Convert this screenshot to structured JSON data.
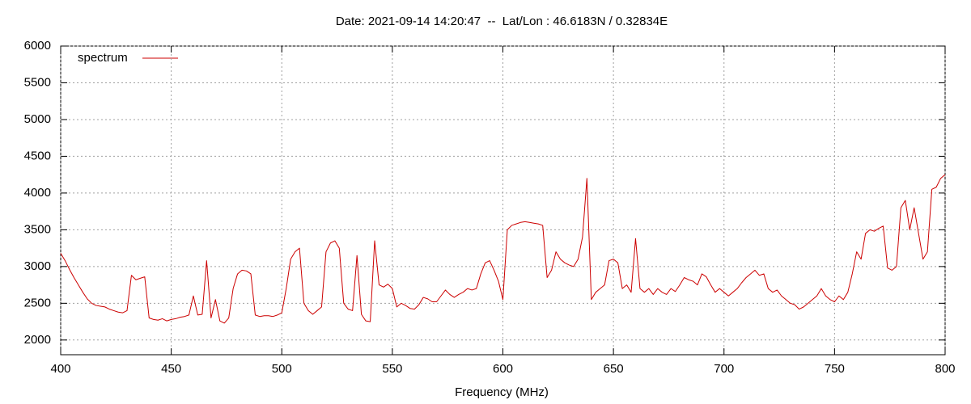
{
  "chart_data": {
    "type": "line",
    "title": "Date: 2021-09-14 14:20:47  --  Lat/Lon : 46.6183N / 0.32834E",
    "xlabel": "Frequency (MHz)",
    "xlim": [
      400,
      800
    ],
    "ylim": [
      1800,
      6000
    ],
    "xticks": [
      400,
      450,
      500,
      550,
      600,
      650,
      700,
      750,
      800
    ],
    "yticks": [
      2000,
      2500,
      3000,
      3500,
      4000,
      4500,
      5000,
      5500,
      6000
    ],
    "grid": true,
    "legend": "upper left",
    "x": [
      400,
      402,
      404,
      406,
      408,
      410,
      412,
      414,
      416,
      418,
      420,
      422,
      424,
      426,
      428,
      430,
      432,
      434,
      436,
      438,
      440,
      442,
      444,
      446,
      448,
      450,
      452,
      454,
      456,
      458,
      460,
      462,
      464,
      466,
      468,
      470,
      472,
      474,
      476,
      478,
      480,
      482,
      484,
      486,
      488,
      490,
      492,
      494,
      496,
      498,
      500,
      502,
      504,
      506,
      508,
      510,
      512,
      514,
      516,
      518,
      520,
      522,
      524,
      526,
      528,
      530,
      532,
      534,
      536,
      538,
      540,
      542,
      544,
      546,
      548,
      550,
      552,
      554,
      556,
      558,
      560,
      562,
      564,
      566,
      568,
      570,
      572,
      574,
      576,
      578,
      580,
      582,
      584,
      586,
      588,
      590,
      592,
      594,
      596,
      598,
      600,
      602,
      604,
      606,
      608,
      610,
      612,
      614,
      616,
      618,
      620,
      622,
      624,
      626,
      628,
      630,
      632,
      634,
      636,
      638,
      640,
      642,
      644,
      646,
      648,
      650,
      652,
      654,
      656,
      658,
      660,
      662,
      664,
      666,
      668,
      670,
      672,
      674,
      676,
      678,
      680,
      682,
      684,
      686,
      688,
      690,
      692,
      694,
      696,
      698,
      700,
      702,
      704,
      706,
      708,
      710,
      712,
      714,
      716,
      718,
      720,
      722,
      724,
      726,
      728,
      730,
      732,
      734,
      736,
      738,
      740,
      742,
      744,
      746,
      748,
      750,
      752,
      754,
      756,
      758,
      760,
      762,
      764,
      766,
      768,
      770,
      772,
      774,
      776,
      778,
      780,
      782,
      784,
      786,
      788,
      790,
      792,
      794,
      796,
      798,
      800
    ],
    "series": [
      {
        "name": "spectrum",
        "color": "#cc0000",
        "values": [
          3180,
          3080,
          2960,
          2850,
          2750,
          2650,
          2560,
          2500,
          2470,
          2460,
          2450,
          2420,
          2400,
          2380,
          2370,
          2400,
          2880,
          2820,
          2840,
          2860,
          2300,
          2280,
          2270,
          2290,
          2260,
          2280,
          2290,
          2310,
          2320,
          2340,
          2600,
          2340,
          2350,
          3080,
          2300,
          2550,
          2260,
          2230,
          2300,
          2700,
          2900,
          2950,
          2940,
          2900,
          2340,
          2320,
          2330,
          2330,
          2320,
          2340,
          2370,
          2700,
          3100,
          3200,
          3250,
          2500,
          2400,
          2350,
          2400,
          2450,
          3200,
          3320,
          3350,
          3250,
          2500,
          2420,
          2400,
          3150,
          2350,
          2260,
          2250,
          3350,
          2750,
          2720,
          2760,
          2700,
          2450,
          2500,
          2470,
          2430,
          2420,
          2480,
          2580,
          2560,
          2520,
          2520,
          2600,
          2680,
          2620,
          2580,
          2620,
          2650,
          2700,
          2680,
          2700,
          2900,
          3050,
          3080,
          2950,
          2800,
          2550,
          3500,
          3560,
          3580,
          3600,
          3610,
          3600,
          3590,
          3580,
          3560,
          2850,
          2950,
          3200,
          3100,
          3050,
          3020,
          3000,
          3100,
          3400,
          4200,
          2550,
          2650,
          2700,
          2750,
          3080,
          3100,
          3050,
          2700,
          2750,
          2650,
          3380,
          2700,
          2650,
          2700,
          2620,
          2700,
          2650,
          2620,
          2700,
          2660,
          2750,
          2850,
          2820,
          2800,
          2750,
          2900,
          2860,
          2750,
          2650,
          2700,
          2650,
          2600,
          2650,
          2700,
          2780,
          2850,
          2900,
          2950,
          2880,
          2900,
          2700,
          2650,
          2680,
          2600,
          2550,
          2500,
          2480,
          2420,
          2450,
          2500,
          2550,
          2600,
          2700,
          2600,
          2550,
          2520,
          2600,
          2550,
          2650,
          2900,
          3200,
          3100,
          3450,
          3500,
          3480,
          3520,
          3550,
          2980,
          2950,
          3000,
          3800,
          3900,
          3500,
          3800,
          3450,
          3100,
          3200,
          4050,
          4080,
          4200,
          4250
        ]
      }
    ]
  }
}
